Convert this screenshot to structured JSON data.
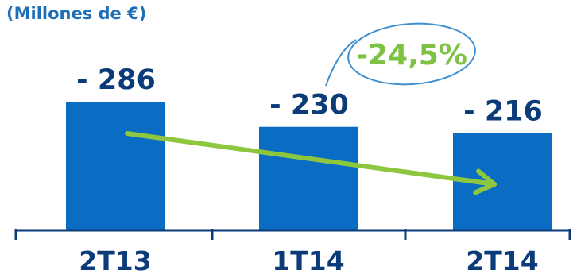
{
  "chart_data": {
    "type": "bar",
    "subtitle": "(Millones de €)",
    "categories": [
      "2T13",
      "1T14",
      "2T14"
    ],
    "values": [
      -286,
      -230,
      -216
    ],
    "value_labels": [
      "- 286",
      "- 230",
      "- 216"
    ],
    "ylim": [
      0,
      -286
    ],
    "grid": false,
    "legend": "none",
    "annotation": {
      "text": "-24,5%",
      "from_category": "2T13",
      "to_category": "2T14"
    }
  },
  "colors": {
    "bar": "#0a6cc3",
    "label": "#0b3b78",
    "subtitle": "#1f6fb8",
    "axis": "#0b3b78",
    "trend_arrow": "#8dc63f",
    "annotation_circle": "#3e8fcf",
    "annotation_text": "#7dc242"
  }
}
